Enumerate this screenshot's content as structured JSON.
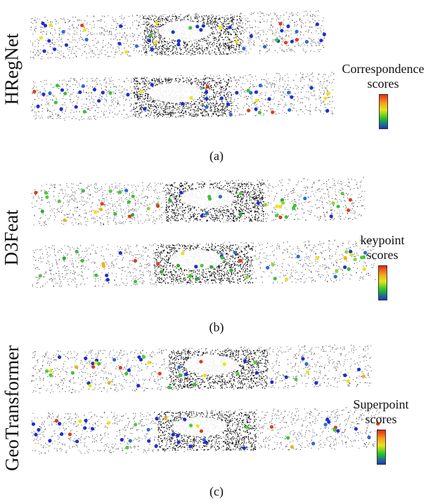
{
  "panels": [
    {
      "method": "HRegNet",
      "legend_line1": "Correspondence",
      "legend_line2": "scores",
      "caption": "(a)",
      "palette": [
        "#1c2fd0",
        "#1c2fd0",
        "#1c2fd0",
        "#1c2fd0",
        "#1c2fd0",
        "#1c2fd0",
        "#2a6ad8",
        "#3fbf3a",
        "#f2e21c",
        "#e03a18"
      ]
    },
    {
      "method": "D3Feat",
      "legend_line1": "keypoint",
      "legend_line2": "scores",
      "caption": "(b)",
      "palette": [
        "#3fbf3a",
        "#55c83a",
        "#2fa838",
        "#1c2fd0",
        "#2a6ad8",
        "#8fd43a",
        "#e6e619",
        "#f0b11c",
        "#e03a18",
        "#3fbf3a"
      ]
    },
    {
      "method": "GeoTransformer",
      "legend_line1": "Superpoint",
      "legend_line2": "scores",
      "caption": "(c)",
      "palette": [
        "#1c2fd0",
        "#2a6ad8",
        "#1c2fd0",
        "#3fbf3a",
        "#1c2fd0",
        "#55c83a",
        "#e6e619",
        "#f0b11c",
        "#e03a18",
        "#1c2fd0"
      ]
    }
  ],
  "colorbar_colors": [
    "#e8281d",
    "#f7a21a",
    "#e6e619",
    "#25c52a",
    "#1b35c9"
  ]
}
